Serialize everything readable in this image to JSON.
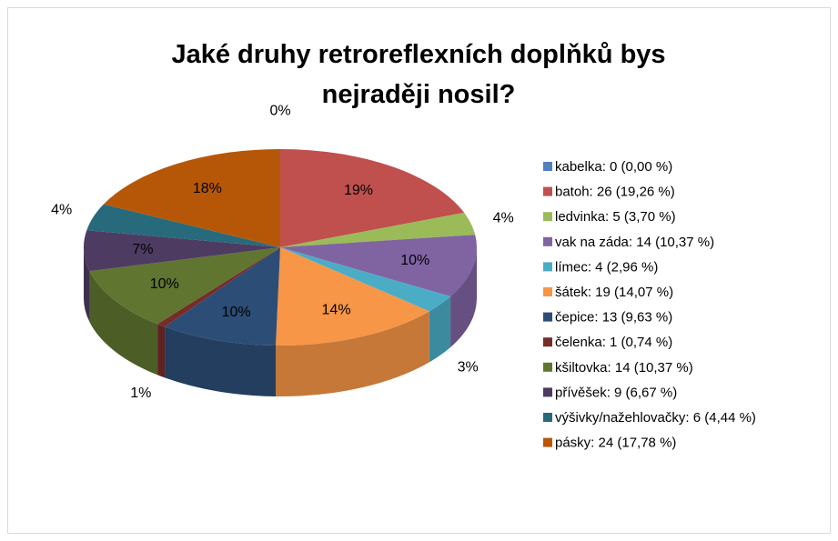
{
  "chart_data": {
    "type": "pie3d",
    "title": "Jaké druhy retroreflexních doplňků bys nejraději nosil?",
    "categories": [
      "kabelka: 0 (0,00 %)",
      "batoh: 26 (19,26 %)",
      "ledvinka: 5 (3,70 %)",
      "vak na záda: 14 (10,37 %)",
      "límec: 4 (2,96 %)",
      "šátek: 19 (14,07 %)",
      "čepice: 13 (9,63 %)",
      "čelenka: 1 (0,74 %)",
      "kšiltovka: 14 (10,37 %)",
      "přívěšek: 9 (6,67 %)",
      "výšivky/nažehlovačky: 6 (4,44 %)",
      "pásky: 24 (17,78 %)"
    ],
    "values": [
      0,
      19.26,
      3.7,
      10.37,
      2.96,
      14.07,
      9.63,
      0.74,
      10.37,
      6.67,
      4.44,
      17.78
    ],
    "value_labels": [
      "0%",
      "19%",
      "4%",
      "10%",
      "3%",
      "14%",
      "10%",
      "1%",
      "10%",
      "7%",
      "4%",
      "18%"
    ],
    "colors": [
      "#4f81bd",
      "#c0504d",
      "#9bbb59",
      "#8064a2",
      "#4bacc6",
      "#f79646",
      "#2c4d75",
      "#772c2a",
      "#5f7530",
      "#4d3b62",
      "#276a7c",
      "#b65708"
    ],
    "legend": "right"
  }
}
